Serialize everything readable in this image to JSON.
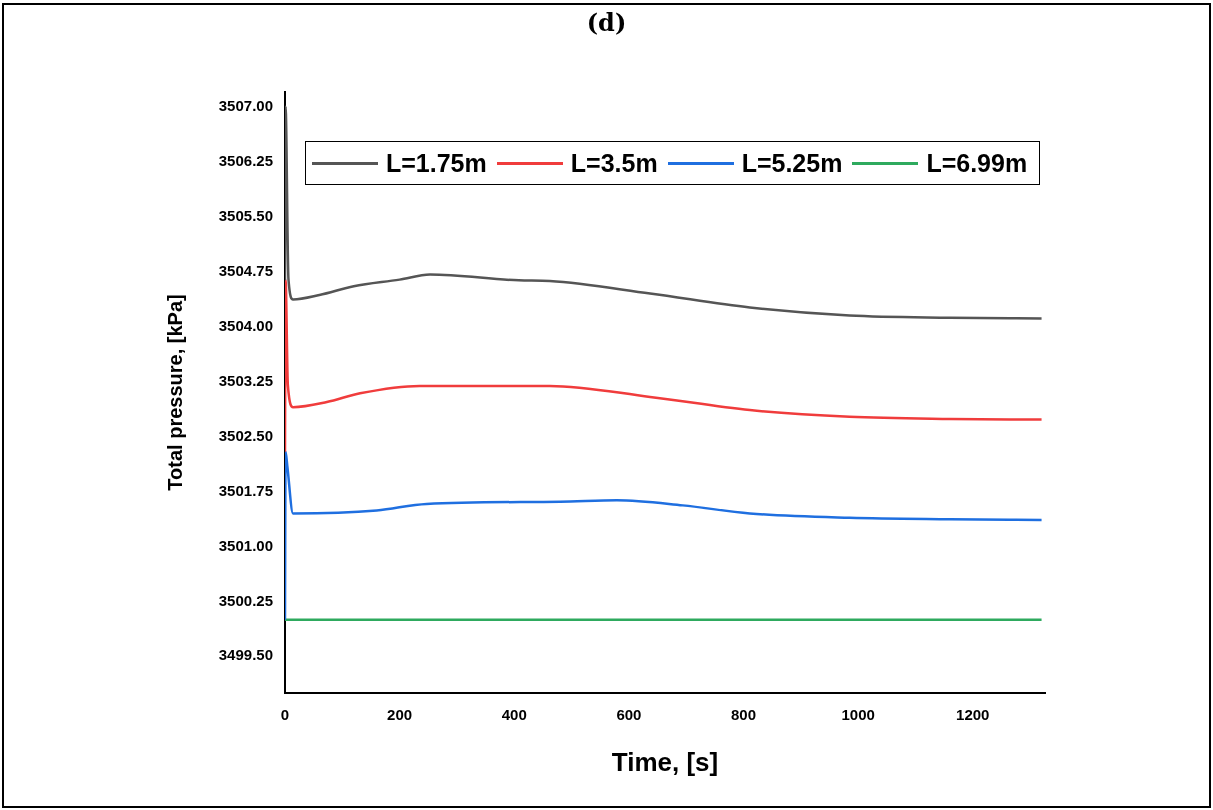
{
  "chart_data": {
    "type": "line",
    "title": "(d)",
    "xlabel": "Time, [s]",
    "ylabel": "Total pressure, [kPa]",
    "xlim": [
      0,
      1326
    ],
    "xticks": [
      0,
      200,
      400,
      600,
      800,
      1000,
      1200
    ],
    "ylim": [
      3499.0,
      3507.2
    ],
    "yticks": [
      {
        "value": 3499.5,
        "label": "3499.50"
      },
      {
        "value": 3500.25,
        "label": "3500.25"
      },
      {
        "value": 3501,
        "label": "3501.00"
      },
      {
        "value": 3501.75,
        "label": "3501.75"
      },
      {
        "value": 3502.5,
        "label": "3502.50"
      },
      {
        "value": 3503.25,
        "label": "3503.25"
      },
      {
        "value": 3504,
        "label": "3504.00"
      },
      {
        "value": 3504.75,
        "label": "3504.75"
      },
      {
        "value": 3505.5,
        "label": "3505.50"
      },
      {
        "value": 3506.25,
        "label": "3506.25"
      },
      {
        "value": 3507,
        "label": "3507.00"
      }
    ],
    "grid": false,
    "legend": "top",
    "marker": "none",
    "line_style": "solid",
    "series": [
      {
        "name": "L=1.75m",
        "color": "#555555",
        "x": [
          0,
          1,
          6,
          14,
          60,
          120,
          200,
          253,
          408,
          462,
          637,
          811,
          985,
          1160,
          1320
        ],
        "values": [
          3504.63,
          3507.0,
          3504.65,
          3504.37,
          3504.43,
          3504.55,
          3504.64,
          3504.71,
          3504.63,
          3504.62,
          3504.45,
          3504.26,
          3504.15,
          3504.12,
          3504.11
        ]
      },
      {
        "name": "L=3.5m",
        "color": "#f03c3c",
        "x": [
          0,
          1,
          5,
          14,
          73,
          131,
          235,
          462,
          637,
          811,
          985,
          1160,
          1320
        ],
        "values": [
          3502.29,
          3504.63,
          3503.2,
          3502.9,
          3502.97,
          3503.09,
          3503.19,
          3503.19,
          3503.04,
          3502.86,
          3502.77,
          3502.74,
          3502.73
        ]
      },
      {
        "name": "L=5.25m",
        "color": "#1f6fe0",
        "x": [
          0,
          1,
          4,
          14,
          160,
          247,
          480,
          579,
          694,
          811,
          985,
          1160,
          1320
        ],
        "values": [
          3500.0,
          3502.29,
          3502.1,
          3501.45,
          3501.49,
          3501.58,
          3501.61,
          3501.63,
          3501.56,
          3501.45,
          3501.39,
          3501.37,
          3501.36
        ]
      },
      {
        "name": "L=6.99m",
        "color": "#2eaa5e",
        "x": [
          0,
          1320
        ],
        "values": [
          3500.0,
          3500.0
        ]
      }
    ]
  }
}
